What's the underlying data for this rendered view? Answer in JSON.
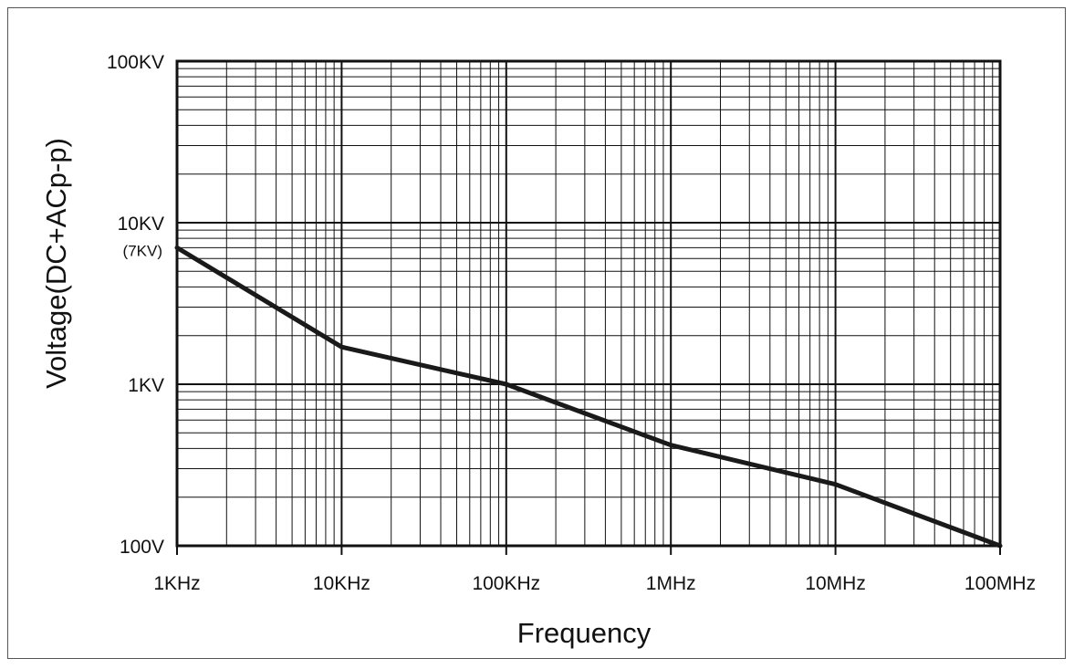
{
  "chart_data": {
    "type": "line",
    "xscale": "log",
    "yscale": "log",
    "xlabel": "Frequency",
    "ylabel": "Voltage(DC+ACp-p)",
    "xlim": [
      1000,
      100000000
    ],
    "ylim": [
      100,
      100000
    ],
    "x_ticks": [
      {
        "value": 1000,
        "label": "1KHz"
      },
      {
        "value": 10000,
        "label": "10KHz"
      },
      {
        "value": 100000,
        "label": "100KHz"
      },
      {
        "value": 1000000,
        "label": "1MHz"
      },
      {
        "value": 10000000,
        "label": "10MHz"
      },
      {
        "value": 100000000,
        "label": "100MHz"
      }
    ],
    "y_ticks": [
      {
        "value": 100,
        "label": "100V"
      },
      {
        "value": 1000,
        "label": "1KV"
      },
      {
        "value": 10000,
        "label": "10KV"
      },
      {
        "value": 100000,
        "label": "100KV"
      }
    ],
    "annotations": [
      {
        "value": 7000,
        "label": "(7KV)"
      }
    ],
    "grid": true,
    "series": [
      {
        "x": [
          1000,
          10000,
          100000,
          1000000,
          10000000,
          100000000
        ],
        "y": [
          7000,
          1700,
          1000,
          420,
          240,
          100
        ]
      }
    ],
    "line_color": "#1a1a1a",
    "grid_color": "#111111"
  }
}
